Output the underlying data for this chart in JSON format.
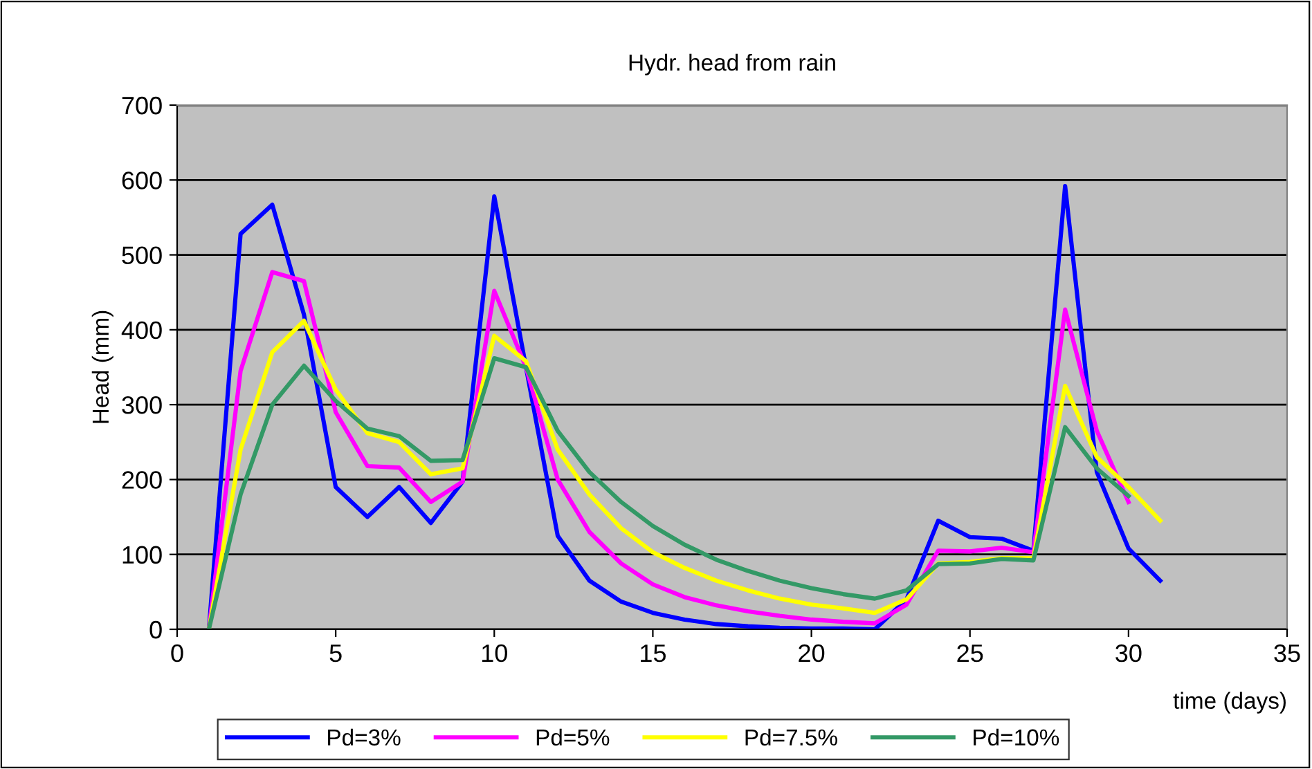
{
  "chart_data": {
    "type": "line",
    "title": "Hydr. head from rain",
    "xlabel": "time (days)",
    "ylabel": "Head (mm)",
    "x": [
      1,
      2,
      3,
      4,
      5,
      6,
      7,
      8,
      9,
      10,
      11,
      12,
      13,
      14,
      15,
      16,
      17,
      18,
      19,
      20,
      21,
      22,
      23,
      24,
      25,
      26,
      27,
      28,
      29,
      30,
      31
    ],
    "series": [
      {
        "name": "Pd=3%",
        "color": "#0000ff",
        "values": [
          0,
          528,
          567,
          420,
          190,
          150,
          190,
          142,
          197,
          578,
          350,
          125,
          65,
          37,
          22,
          13,
          7,
          4,
          2,
          1,
          1,
          0,
          40,
          145,
          123,
          121,
          105,
          592,
          210,
          108,
          65
        ]
      },
      {
        "name": "Pd=5%",
        "color": "#ff00ff",
        "values": [
          0,
          345,
          477,
          465,
          290,
          218,
          216,
          170,
          197,
          452,
          350,
          200,
          130,
          88,
          60,
          43,
          32,
          24,
          18,
          13,
          10,
          8,
          33,
          105,
          104,
          109,
          103,
          427,
          265,
          170,
          null
        ]
      },
      {
        "name": "Pd=7.5%",
        "color": "#ffff00",
        "values": [
          0,
          240,
          370,
          412,
          320,
          262,
          250,
          207,
          215,
          392,
          358,
          240,
          180,
          135,
          103,
          82,
          65,
          52,
          41,
          33,
          28,
          22,
          40,
          88,
          90,
          95,
          95,
          325,
          230,
          190,
          145
        ]
      },
      {
        "name": "Pd=10%",
        "color": "#339966",
        "values": [
          0,
          180,
          300,
          352,
          305,
          268,
          258,
          225,
          226,
          362,
          350,
          265,
          210,
          170,
          138,
          113,
          93,
          78,
          65,
          55,
          47,
          41,
          52,
          87,
          88,
          94,
          92,
          270,
          215,
          178,
          null
        ]
      }
    ],
    "xlim": [
      0,
      35
    ],
    "xticks": [
      0,
      5,
      10,
      15,
      20,
      25,
      30,
      35
    ],
    "ylim": [
      0,
      700
    ],
    "yticks": [
      0,
      100,
      200,
      300,
      400,
      500,
      600,
      700
    ],
    "grid": "y",
    "legend": "bottom",
    "marker": "none",
    "line_style": "solid"
  }
}
